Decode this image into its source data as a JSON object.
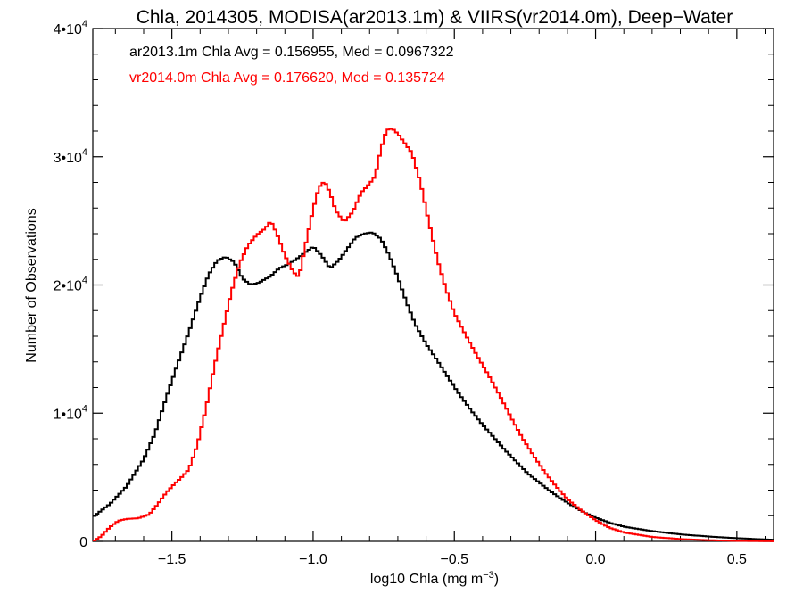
{
  "chart_data": {
    "type": "line",
    "title": "Chla, 2014305, MODISA(ar2013.1m) & VIIRS(vr2014.0m), Deep−Water",
    "xlabel": "log10 Chla (mg m",
    "xlabel_sup": "−3",
    "xlabel_end": ")",
    "ylabel": "Number of Observations",
    "xlim": [
      -1.78,
      0.63
    ],
    "ylim": [
      0,
      40000
    ],
    "x_ticks": [
      {
        "value": -1.5,
        "label": "−1.5"
      },
      {
        "value": -1.0,
        "label": "−1.0"
      },
      {
        "value": -0.5,
        "label": "−0.5"
      },
      {
        "value": 0.0,
        "label": "0.0"
      },
      {
        "value": 0.5,
        "label": "0.5"
      }
    ],
    "y_ticks": [
      {
        "value": 0,
        "label": "0",
        "exp": ""
      },
      {
        "value": 10000,
        "label": "1•10",
        "exp": "4"
      },
      {
        "value": 20000,
        "label": "2•10",
        "exp": "4"
      },
      {
        "value": 30000,
        "label": "3•10",
        "exp": "4"
      },
      {
        "value": 40000,
        "label": "4•10",
        "exp": "4"
      }
    ],
    "annotations": [
      {
        "text": "ar2013.1m Chla Avg = 0.156955, Med = 0.0967322",
        "color": "#000000"
      },
      {
        "text": "vr2014.0m Chla Avg = 0.176620, Med = 0.135724",
        "color": "#ff0000"
      }
    ],
    "series": [
      {
        "color": "#000000",
        "points": [
          [
            -1.78,
            1900
          ],
          [
            -1.72,
            2900
          ],
          [
            -1.66,
            4300
          ],
          [
            -1.6,
            6400
          ],
          [
            -1.56,
            8400
          ],
          [
            -1.52,
            11200
          ],
          [
            -1.48,
            13800
          ],
          [
            -1.44,
            16300
          ],
          [
            -1.4,
            19000
          ],
          [
            -1.37,
            20800
          ],
          [
            -1.34,
            21900
          ],
          [
            -1.31,
            22200
          ],
          [
            -1.28,
            21800
          ],
          [
            -1.25,
            20500
          ],
          [
            -1.22,
            20000
          ],
          [
            -1.19,
            20200
          ],
          [
            -1.15,
            20700
          ],
          [
            -1.12,
            21300
          ],
          [
            -1.09,
            21600
          ],
          [
            -1.06,
            22000
          ],
          [
            -1.03,
            22500
          ],
          [
            -1.0,
            23000
          ],
          [
            -0.97,
            22300
          ],
          [
            -0.94,
            21300
          ],
          [
            -0.91,
            21900
          ],
          [
            -0.88,
            22800
          ],
          [
            -0.85,
            23700
          ],
          [
            -0.82,
            24000
          ],
          [
            -0.79,
            24100
          ],
          [
            -0.76,
            23600
          ],
          [
            -0.73,
            22300
          ],
          [
            -0.7,
            20600
          ],
          [
            -0.67,
            18700
          ],
          [
            -0.64,
            17000
          ],
          [
            -0.6,
            15400
          ],
          [
            -0.56,
            14100
          ],
          [
            -0.52,
            12700
          ],
          [
            -0.48,
            11400
          ],
          [
            -0.44,
            10200
          ],
          [
            -0.4,
            9100
          ],
          [
            -0.36,
            8100
          ],
          [
            -0.32,
            7100
          ],
          [
            -0.28,
            6200
          ],
          [
            -0.24,
            5300
          ],
          [
            -0.2,
            4600
          ],
          [
            -0.16,
            3900
          ],
          [
            -0.12,
            3300
          ],
          [
            -0.08,
            2750
          ],
          [
            -0.04,
            2250
          ],
          [
            0.0,
            1850
          ],
          [
            0.05,
            1450
          ],
          [
            0.1,
            1150
          ],
          [
            0.2,
            800
          ],
          [
            0.3,
            550
          ],
          [
            0.4,
            380
          ],
          [
            0.5,
            250
          ],
          [
            0.6,
            150
          ],
          [
            0.63,
            130
          ]
        ]
      },
      {
        "color": "#ff0000",
        "points": [
          [
            -1.78,
            0
          ],
          [
            -1.75,
            400
          ],
          [
            -1.72,
            1100
          ],
          [
            -1.69,
            1600
          ],
          [
            -1.66,
            1750
          ],
          [
            -1.62,
            1800
          ],
          [
            -1.58,
            2100
          ],
          [
            -1.55,
            2900
          ],
          [
            -1.52,
            3800
          ],
          [
            -1.49,
            4500
          ],
          [
            -1.47,
            4900
          ],
          [
            -1.44,
            5600
          ],
          [
            -1.41,
            7500
          ],
          [
            -1.38,
            10300
          ],
          [
            -1.35,
            13600
          ],
          [
            -1.32,
            16500
          ],
          [
            -1.29,
            19400
          ],
          [
            -1.26,
            21700
          ],
          [
            -1.23,
            23100
          ],
          [
            -1.2,
            23900
          ],
          [
            -1.17,
            24400
          ],
          [
            -1.15,
            25000
          ],
          [
            -1.13,
            24100
          ],
          [
            -1.1,
            22300
          ],
          [
            -1.07,
            21000
          ],
          [
            -1.05,
            20600
          ],
          [
            -1.03,
            22800
          ],
          [
            -1.0,
            25900
          ],
          [
            -0.98,
            27600
          ],
          [
            -0.96,
            28100
          ],
          [
            -0.94,
            27200
          ],
          [
            -0.92,
            25800
          ],
          [
            -0.89,
            24900
          ],
          [
            -0.86,
            25700
          ],
          [
            -0.83,
            27200
          ],
          [
            -0.8,
            27900
          ],
          [
            -0.78,
            28500
          ],
          [
            -0.76,
            30600
          ],
          [
            -0.74,
            32100
          ],
          [
            -0.72,
            32200
          ],
          [
            -0.7,
            31800
          ],
          [
            -0.68,
            31200
          ],
          [
            -0.65,
            30300
          ],
          [
            -0.62,
            28000
          ],
          [
            -0.59,
            24900
          ],
          [
            -0.56,
            22000
          ],
          [
            -0.53,
            19700
          ],
          [
            -0.5,
            17800
          ],
          [
            -0.46,
            16100
          ],
          [
            -0.42,
            14500
          ],
          [
            -0.38,
            13000
          ],
          [
            -0.34,
            11400
          ],
          [
            -0.3,
            9700
          ],
          [
            -0.26,
            8100
          ],
          [
            -0.22,
            6700
          ],
          [
            -0.18,
            5400
          ],
          [
            -0.14,
            4300
          ],
          [
            -0.1,
            3300
          ],
          [
            -0.05,
            2400
          ],
          [
            0.0,
            1650
          ],
          [
            0.05,
            1050
          ],
          [
            0.1,
            700
          ],
          [
            0.2,
            350
          ],
          [
            0.3,
            180
          ],
          [
            0.4,
            90
          ],
          [
            0.5,
            40
          ],
          [
            0.63,
            10
          ]
        ]
      }
    ]
  }
}
